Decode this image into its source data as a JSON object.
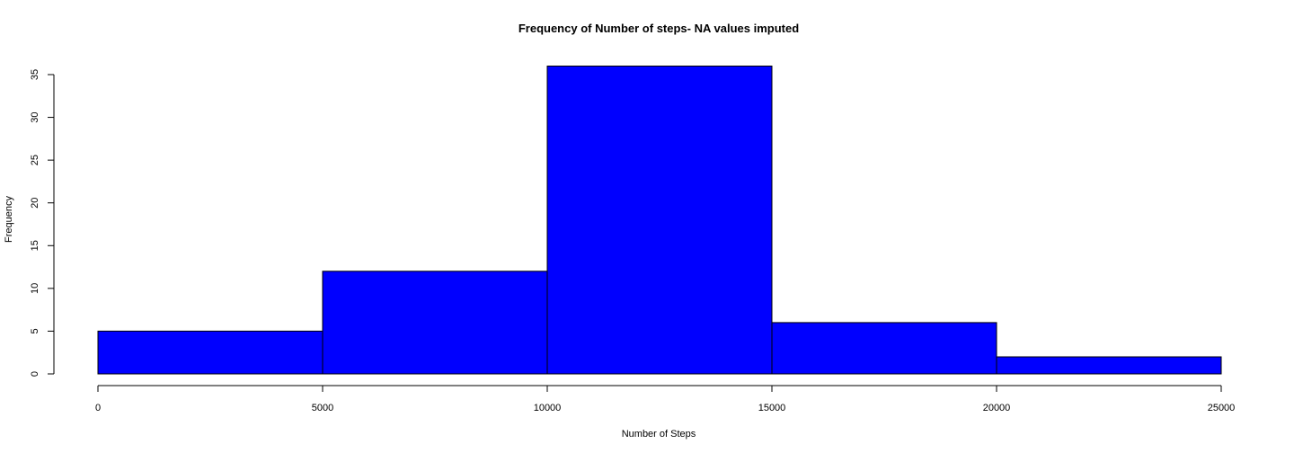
{
  "chart_data": {
    "type": "bar",
    "subtype": "histogram",
    "title": "Frequency of Number of steps- NA values imputed",
    "xlabel": "Number of Steps",
    "ylabel": "Frequency",
    "bins": [
      {
        "start": 0,
        "end": 5000,
        "value": 5
      },
      {
        "start": 5000,
        "end": 10000,
        "value": 12
      },
      {
        "start": 10000,
        "end": 15000,
        "value": 36
      },
      {
        "start": 15000,
        "end": 20000,
        "value": 6
      },
      {
        "start": 20000,
        "end": 25000,
        "value": 2
      }
    ],
    "xlim": [
      0,
      25000
    ],
    "ylim": [
      0,
      36
    ],
    "x_ticks": [
      "0",
      "5000",
      "10000",
      "15000",
      "20000",
      "25000"
    ],
    "y_ticks": [
      "0",
      "5",
      "10",
      "15",
      "20",
      "25",
      "30",
      "35"
    ],
    "bar_color": "#0000ff",
    "border_color": "#000000",
    "grid": false,
    "legend": "none"
  }
}
